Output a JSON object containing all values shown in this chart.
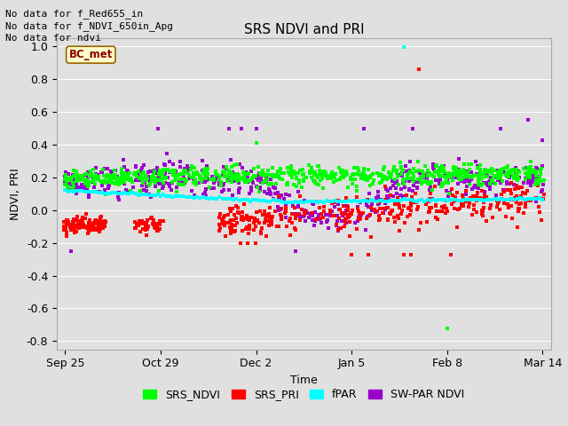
{
  "title": "SRS NDVI and PRI",
  "xlabel": "Time",
  "ylabel": "NDVI, PRI",
  "ylim": [
    -0.85,
    1.05
  ],
  "yticks": [
    -0.8,
    -0.6,
    -0.4,
    -0.2,
    0.0,
    0.2,
    0.4,
    0.6,
    0.8,
    1.0
  ],
  "ytick_labels": [
    "-0.8",
    "-0.6",
    "-0.4",
    "-0.2",
    "0.0",
    "0.2",
    "0.4",
    "0.6",
    "0.8",
    "1.0"
  ],
  "header_text_lines": [
    "No data for f_Red655_in",
    "No data for f_NDVI_650in_Apg",
    "No data for ndvi"
  ],
  "legend_label_box": "BC_met",
  "fig_facecolor": "#e0e0e0",
  "plot_bg_color": "#e0e0e0",
  "grid_color": "#ffffff",
  "colors": {
    "SRS_NDVI": "#00ff00",
    "SRS_PRI": "#ff0000",
    "fPAR": "#00ffff",
    "SW_PAR_NDVI": "#9900cc"
  },
  "legend_labels": [
    "SRS_NDVI",
    "SRS_PRI",
    "fPAR",
    "SW-PAR NDVI"
  ],
  "xtick_labels": [
    "Sep 25",
    "Oct 29",
    "Dec 2",
    "Jan 5",
    "Feb 8",
    "Mar 14"
  ],
  "xtick_days": [
    0,
    34,
    68,
    102,
    136,
    170
  ],
  "xlim": [
    -3,
    173
  ]
}
